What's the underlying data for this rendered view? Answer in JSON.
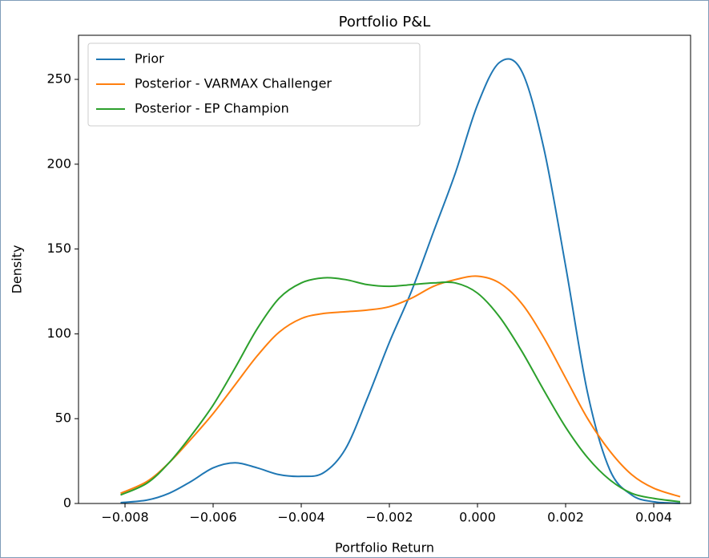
{
  "chart_data": {
    "type": "line",
    "title": "Portfolio P&L",
    "xlabel": "Portfolio Return",
    "ylabel": "Density",
    "x": [
      -0.0081,
      -0.0075,
      -0.007,
      -0.0065,
      -0.006,
      -0.0055,
      -0.005,
      -0.0045,
      -0.004,
      -0.0035,
      -0.003,
      -0.0025,
      -0.002,
      -0.0015,
      -0.001,
      -0.0005,
      0,
      0.0005,
      0.001,
      0.0015,
      0.002,
      0.0025,
      0.003,
      0.0035,
      0.004,
      0.0046
    ],
    "series": [
      {
        "name": "Prior",
        "color": "#1f77b4",
        "values": [
          0.5,
          2,
          6,
          13,
          21,
          24,
          21,
          17,
          16,
          18,
          32,
          62,
          95,
          125,
          160,
          195,
          235,
          260,
          255,
          210,
          140,
          65,
          20,
          5,
          1,
          0.1
        ]
      },
      {
        "name": "Posterior - VARMAX Challenger",
        "color": "#ff7f0e",
        "values": [
          6,
          13,
          24,
          38,
          53,
          70,
          87,
          101,
          109,
          112,
          113,
          114,
          116,
          121,
          128,
          132,
          134,
          130,
          118,
          98,
          74,
          50,
          31,
          17,
          9,
          4
        ]
      },
      {
        "name": "Posterior - EP Champion",
        "color": "#2ca02c",
        "values": [
          5,
          12,
          24,
          40,
          58,
          80,
          103,
          121,
          130,
          133,
          132,
          129,
          128,
          129,
          130,
          130,
          124,
          110,
          90,
          67,
          45,
          27,
          14,
          6,
          3,
          1
        ]
      }
    ],
    "xlim": [
      -0.009055,
      0.004836
    ],
    "ylim": [
      0,
      276
    ],
    "xticks": [
      {
        "value": -0.008,
        "label": "−0.008"
      },
      {
        "value": -0.006,
        "label": "−0.006"
      },
      {
        "value": -0.004,
        "label": "−0.004"
      },
      {
        "value": -0.002,
        "label": "−0.002"
      },
      {
        "value": 0,
        "label": "0.000"
      },
      0.002,
      0.004
    ],
    "yticks": [
      0,
      50,
      100,
      150,
      200,
      250
    ],
    "legend": "upper left"
  }
}
